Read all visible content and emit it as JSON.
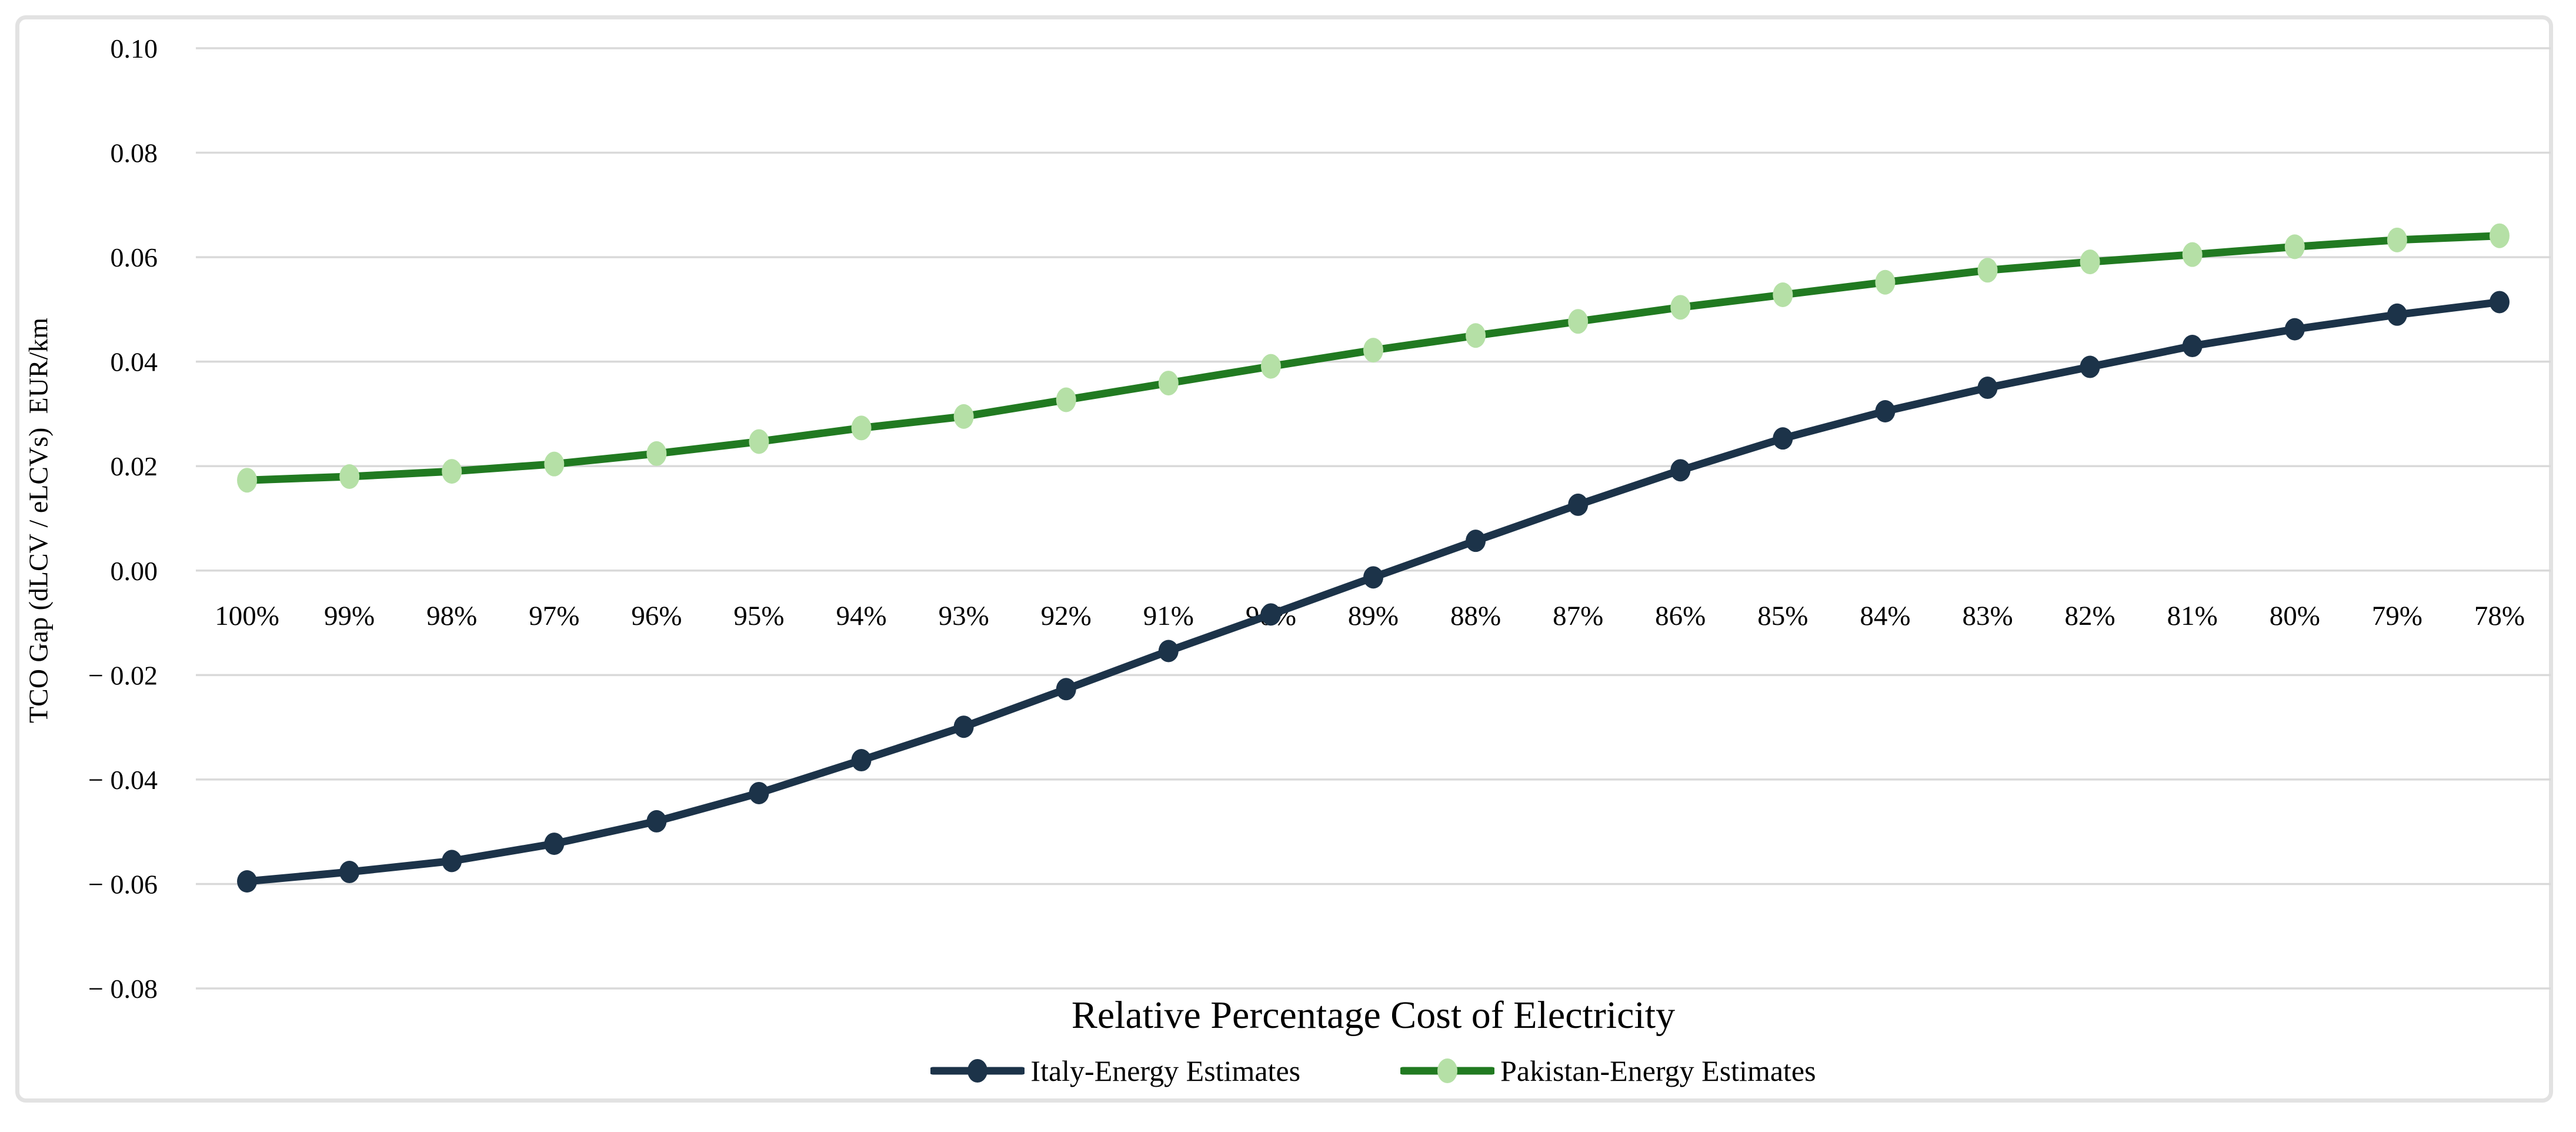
{
  "frame": {
    "background": "#ffffff",
    "border_color": "#e2e2e2",
    "gridline_color": "#d9d9d9"
  },
  "y_axis": {
    "title": "TCO Gap (dLCV / eLCVs)  EUR/km",
    "tick_labels": [
      "0.10",
      "0.08",
      "0.06",
      "0.04",
      "0.02",
      "0.00",
      "− 0.02",
      "− 0.04",
      "− 0.06",
      "− 0.08"
    ],
    "tick_values": [
      0.1,
      0.08,
      0.06,
      0.04,
      0.02,
      0.0,
      -0.02,
      -0.04,
      -0.06,
      -0.08
    ],
    "max": 0.1,
    "min": -0.08,
    "step": 0.02
  },
  "x_axis": {
    "title": "Relative Percentage Cost of Electricity",
    "categories": [
      "100%",
      "99%",
      "98%",
      "97%",
      "96%",
      "95%",
      "94%",
      "93%",
      "92%",
      "91%",
      "90%",
      "89%",
      "88%",
      "87%",
      "86%",
      "85%",
      "84%",
      "83%",
      "82%",
      "81%",
      "80%",
      "79%",
      "78%"
    ]
  },
  "legend": {
    "items": [
      {
        "label": "Italy-Energy Estimates",
        "line_color": "#1c3349",
        "marker_color": "#1c3349"
      },
      {
        "label": "Pakistan-Energy Estimates",
        "line_color": "#217a21",
        "marker_color": "#b5e0a6"
      }
    ]
  },
  "chart_data": {
    "type": "line",
    "title": "",
    "xlabel": "Relative Percentage Cost of Electricity",
    "ylabel": "TCO Gap (dLCV / eLCVs)  EUR/km",
    "ylim": [
      -0.08,
      0.1
    ],
    "ytick_step": 0.02,
    "grid": true,
    "legend_position": "bottom",
    "categories": [
      "100%",
      "99%",
      "98%",
      "97%",
      "96%",
      "95%",
      "94%",
      "93%",
      "92%",
      "91%",
      "90%",
      "89%",
      "88%",
      "87%",
      "86%",
      "85%",
      "84%",
      "83%",
      "82%",
      "81%",
      "80%",
      "79%",
      "78%"
    ],
    "series": [
      {
        "name": "Italy-Energy Estimates",
        "color": "#1c3349",
        "marker_color": "#1c3349",
        "values": [
          -0.0595,
          -0.0577,
          -0.0556,
          -0.0523,
          -0.048,
          -0.0426,
          -0.0363,
          -0.0299,
          -0.0227,
          -0.0154,
          -0.0084,
          -0.0013,
          0.0057,
          0.0126,
          0.0192,
          0.0253,
          0.0305,
          0.035,
          0.039,
          0.043,
          0.0462,
          0.049,
          0.0514
        ]
      },
      {
        "name": "Pakistan-Energy Estimates",
        "color": "#217a21",
        "marker_color": "#b5e0a6",
        "values": [
          0.0173,
          0.018,
          0.019,
          0.0204,
          0.0224,
          0.0247,
          0.0273,
          0.0295,
          0.0327,
          0.0359,
          0.0391,
          0.0422,
          0.045,
          0.0477,
          0.0504,
          0.0528,
          0.0552,
          0.0575,
          0.0591,
          0.0605,
          0.062,
          0.0633,
          0.0641
        ]
      }
    ]
  }
}
